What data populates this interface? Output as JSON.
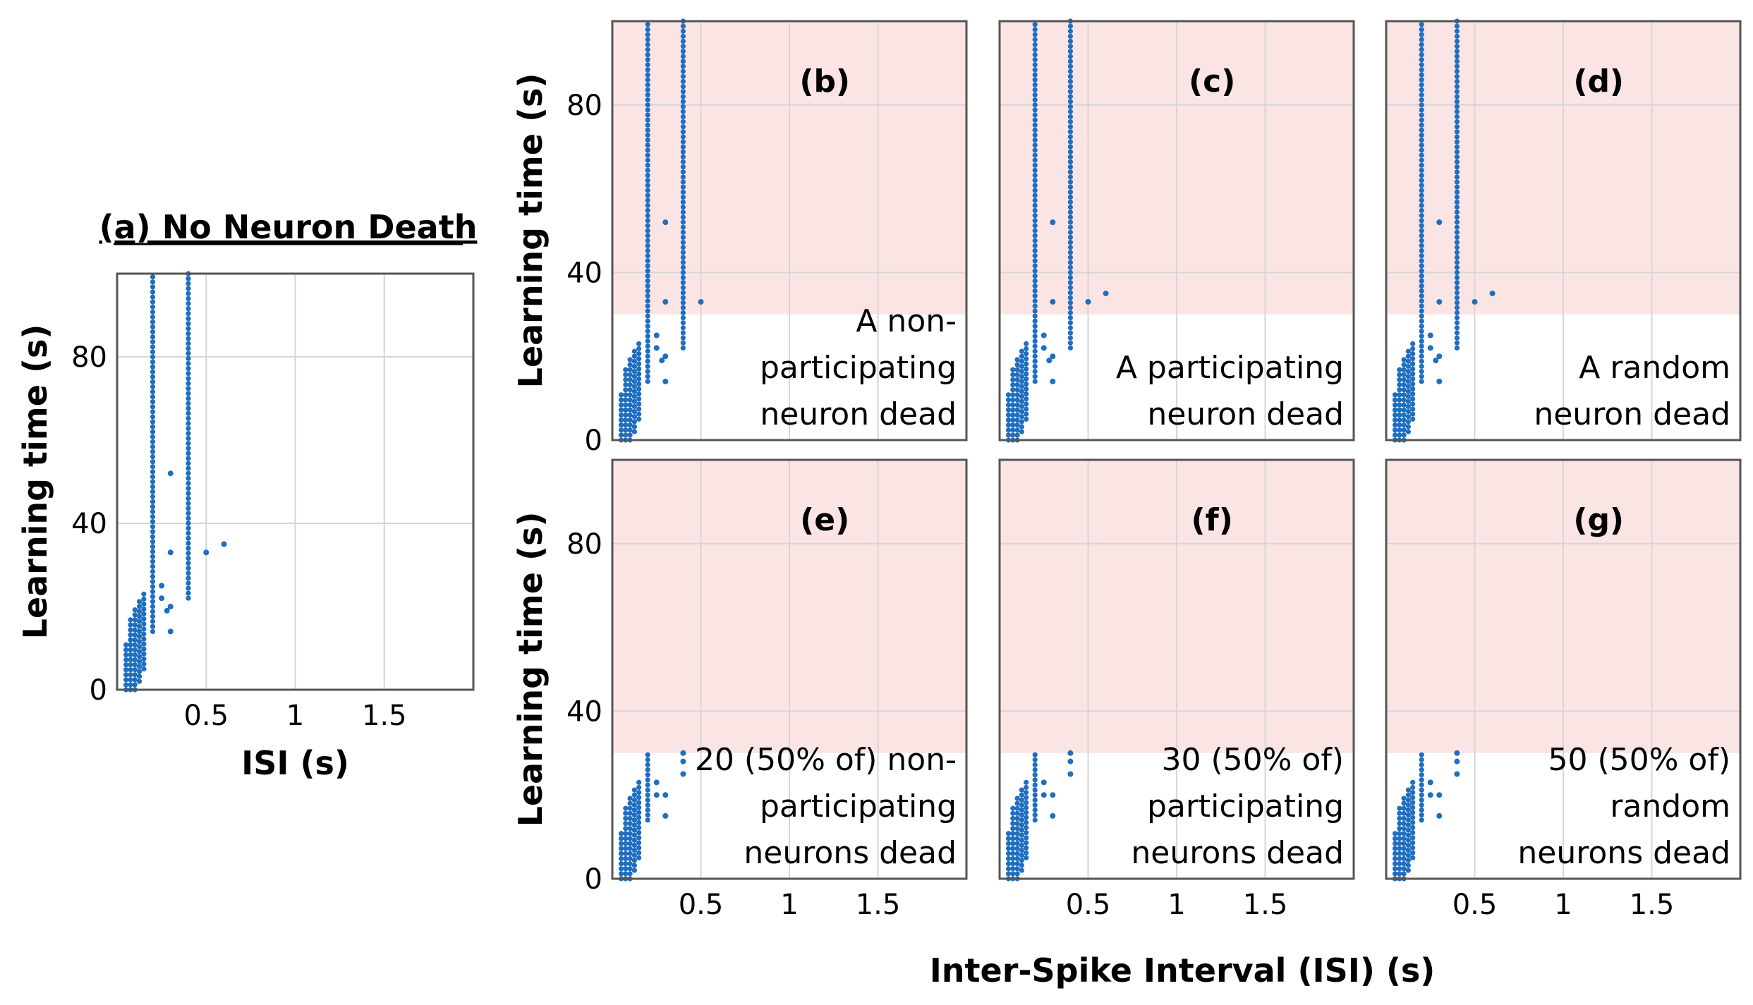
{
  "colors": {
    "points": "#1f6ebf",
    "shade": "#fbe4e4",
    "frame": "#555555",
    "grid": "#d6d6d6"
  },
  "figure": {
    "xlabel_main": "Inter-Spike Interval (ISI) (s)"
  },
  "chart_data": [
    {
      "id": "a",
      "type": "scatter",
      "title": "(a) No Neuron Death",
      "xlabel": "ISI (s)",
      "ylabel": "Learning time (s)",
      "xlim": [
        0,
        2
      ],
      "ylim": [
        0,
        100
      ],
      "xticks": [
        0.5,
        1,
        1.5
      ],
      "xtick_labels": [
        "0.5",
        "1",
        "1.5"
      ],
      "yticks": [
        0,
        40,
        80
      ],
      "ytick_labels": [
        "0",
        "40",
        "80"
      ],
      "grid": true,
      "shaded_above": null,
      "annotation": [],
      "columns": [
        {
          "x": 0.05,
          "ymin": 0,
          "ymax": 11
        },
        {
          "x": 0.075,
          "ymin": 0,
          "ymax": 17
        },
        {
          "x": 0.1,
          "ymin": 0,
          "ymax": 20
        },
        {
          "x": 0.125,
          "ymin": 2,
          "ymax": 22
        },
        {
          "x": 0.15,
          "ymin": 5,
          "ymax": 23
        },
        {
          "x": 0.2,
          "ymin": 14,
          "ymax": 100
        },
        {
          "x": 0.4,
          "ymin": 22,
          "ymax": 100
        }
      ],
      "points": [
        [
          0.25,
          22
        ],
        [
          0.25,
          25
        ],
        [
          0.28,
          19
        ],
        [
          0.3,
          14
        ],
        [
          0.3,
          20
        ],
        [
          0.3,
          33
        ],
        [
          0.3,
          52
        ],
        [
          0.5,
          33
        ],
        [
          0.6,
          35
        ]
      ]
    },
    {
      "id": "b",
      "type": "scatter",
      "title": "(b)",
      "xlabel": "",
      "ylabel": "Learning time (s)",
      "xlim": [
        0,
        2
      ],
      "ylim": [
        0,
        100
      ],
      "xticks": [
        0.5,
        1,
        1.5
      ],
      "xtick_labels": [],
      "yticks": [
        0,
        40,
        80
      ],
      "ytick_labels": [
        "0",
        "40",
        "80"
      ],
      "grid": true,
      "shaded_above": 30,
      "annotation": [
        "A non-",
        "participating",
        "neuron dead"
      ],
      "columns": [
        {
          "x": 0.05,
          "ymin": 0,
          "ymax": 11
        },
        {
          "x": 0.075,
          "ymin": 0,
          "ymax": 17
        },
        {
          "x": 0.1,
          "ymin": 0,
          "ymax": 20
        },
        {
          "x": 0.125,
          "ymin": 2,
          "ymax": 22
        },
        {
          "x": 0.15,
          "ymin": 5,
          "ymax": 23
        },
        {
          "x": 0.2,
          "ymin": 14,
          "ymax": 100
        },
        {
          "x": 0.4,
          "ymin": 22,
          "ymax": 100
        }
      ],
      "points": [
        [
          0.25,
          22
        ],
        [
          0.25,
          25
        ],
        [
          0.28,
          19
        ],
        [
          0.3,
          14
        ],
        [
          0.3,
          20
        ],
        [
          0.3,
          33
        ],
        [
          0.3,
          52
        ],
        [
          0.5,
          33
        ]
      ]
    },
    {
      "id": "c",
      "type": "scatter",
      "title": "(c)",
      "xlabel": "",
      "ylabel": "",
      "xlim": [
        0,
        2
      ],
      "ylim": [
        0,
        100
      ],
      "xticks": [
        0.5,
        1,
        1.5
      ],
      "xtick_labels": [],
      "yticks": [
        0,
        40,
        80
      ],
      "ytick_labels": [],
      "grid": true,
      "shaded_above": 30,
      "annotation": [
        "A participating",
        "neuron dead"
      ],
      "columns": [
        {
          "x": 0.05,
          "ymin": 0,
          "ymax": 11
        },
        {
          "x": 0.075,
          "ymin": 0,
          "ymax": 17
        },
        {
          "x": 0.1,
          "ymin": 0,
          "ymax": 20
        },
        {
          "x": 0.125,
          "ymin": 2,
          "ymax": 22
        },
        {
          "x": 0.15,
          "ymin": 5,
          "ymax": 23
        },
        {
          "x": 0.2,
          "ymin": 14,
          "ymax": 100
        },
        {
          "x": 0.4,
          "ymin": 22,
          "ymax": 100
        }
      ],
      "points": [
        [
          0.25,
          22
        ],
        [
          0.25,
          25
        ],
        [
          0.28,
          19
        ],
        [
          0.3,
          14
        ],
        [
          0.3,
          20
        ],
        [
          0.3,
          33
        ],
        [
          0.3,
          52
        ],
        [
          0.5,
          33
        ],
        [
          0.6,
          35
        ]
      ]
    },
    {
      "id": "d",
      "type": "scatter",
      "title": "(d)",
      "xlabel": "",
      "ylabel": "",
      "xlim": [
        0,
        2
      ],
      "ylim": [
        0,
        100
      ],
      "xticks": [
        0.5,
        1,
        1.5
      ],
      "xtick_labels": [],
      "yticks": [
        0,
        40,
        80
      ],
      "ytick_labels": [],
      "grid": true,
      "shaded_above": 30,
      "annotation": [
        "A random",
        "neuron dead"
      ],
      "columns": [
        {
          "x": 0.05,
          "ymin": 0,
          "ymax": 11
        },
        {
          "x": 0.075,
          "ymin": 0,
          "ymax": 17
        },
        {
          "x": 0.1,
          "ymin": 0,
          "ymax": 20
        },
        {
          "x": 0.125,
          "ymin": 2,
          "ymax": 22
        },
        {
          "x": 0.15,
          "ymin": 5,
          "ymax": 23
        },
        {
          "x": 0.2,
          "ymin": 14,
          "ymax": 100
        },
        {
          "x": 0.4,
          "ymin": 22,
          "ymax": 100
        }
      ],
      "points": [
        [
          0.25,
          22
        ],
        [
          0.25,
          25
        ],
        [
          0.28,
          19
        ],
        [
          0.3,
          14
        ],
        [
          0.3,
          20
        ],
        [
          0.3,
          33
        ],
        [
          0.3,
          52
        ],
        [
          0.5,
          33
        ],
        [
          0.6,
          35
        ]
      ]
    },
    {
      "id": "e",
      "type": "scatter",
      "title": "(e)",
      "xlabel": "",
      "ylabel": "Learning time (s)",
      "xlim": [
        0,
        2
      ],
      "ylim": [
        0,
        100
      ],
      "xticks": [
        0.5,
        1,
        1.5
      ],
      "xtick_labels": [
        "0.5",
        "1",
        "1.5"
      ],
      "yticks": [
        0,
        40,
        80
      ],
      "ytick_labels": [
        "0",
        "40",
        "80"
      ],
      "grid": true,
      "shaded_above": 30,
      "annotation": [
        "20 (50% of) non-",
        "participating",
        "neurons dead"
      ],
      "columns": [
        {
          "x": 0.05,
          "ymin": 0,
          "ymax": 11
        },
        {
          "x": 0.075,
          "ymin": 0,
          "ymax": 17
        },
        {
          "x": 0.1,
          "ymin": 0,
          "ymax": 20
        },
        {
          "x": 0.125,
          "ymin": 2,
          "ymax": 22
        },
        {
          "x": 0.15,
          "ymin": 5,
          "ymax": 24
        },
        {
          "x": 0.2,
          "ymin": 14,
          "ymax": 30
        }
      ],
      "points": [
        [
          0.25,
          20
        ],
        [
          0.25,
          23
        ],
        [
          0.3,
          15
        ],
        [
          0.3,
          20
        ],
        [
          0.4,
          25
        ],
        [
          0.4,
          28
        ],
        [
          0.4,
          30
        ]
      ]
    },
    {
      "id": "f",
      "type": "scatter",
      "title": "(f)",
      "xlabel": "",
      "ylabel": "",
      "xlim": [
        0,
        2
      ],
      "ylim": [
        0,
        100
      ],
      "xticks": [
        0.5,
        1,
        1.5
      ],
      "xtick_labels": [
        "0.5",
        "1",
        "1.5"
      ],
      "yticks": [
        0,
        40,
        80
      ],
      "ytick_labels": [],
      "grid": true,
      "shaded_above": 30,
      "annotation": [
        "30 (50% of)",
        "participating",
        "neurons dead"
      ],
      "columns": [
        {
          "x": 0.05,
          "ymin": 0,
          "ymax": 11
        },
        {
          "x": 0.075,
          "ymin": 0,
          "ymax": 17
        },
        {
          "x": 0.1,
          "ymin": 0,
          "ymax": 20
        },
        {
          "x": 0.125,
          "ymin": 2,
          "ymax": 22
        },
        {
          "x": 0.15,
          "ymin": 5,
          "ymax": 24
        },
        {
          "x": 0.2,
          "ymin": 14,
          "ymax": 30
        }
      ],
      "points": [
        [
          0.25,
          20
        ],
        [
          0.25,
          23
        ],
        [
          0.3,
          15
        ],
        [
          0.3,
          20
        ],
        [
          0.4,
          25
        ],
        [
          0.4,
          28
        ],
        [
          0.4,
          30
        ]
      ]
    },
    {
      "id": "g",
      "type": "scatter",
      "title": "(g)",
      "xlabel": "",
      "ylabel": "",
      "xlim": [
        0,
        2
      ],
      "ylim": [
        0,
        100
      ],
      "xticks": [
        0.5,
        1,
        1.5
      ],
      "xtick_labels": [
        "0.5",
        "1",
        "1.5"
      ],
      "yticks": [
        0,
        40,
        80
      ],
      "ytick_labels": [],
      "grid": true,
      "shaded_above": 30,
      "annotation": [
        "50 (50% of)",
        "random",
        "neurons dead"
      ],
      "columns": [
        {
          "x": 0.05,
          "ymin": 0,
          "ymax": 11
        },
        {
          "x": 0.075,
          "ymin": 0,
          "ymax": 17
        },
        {
          "x": 0.1,
          "ymin": 0,
          "ymax": 20
        },
        {
          "x": 0.125,
          "ymin": 2,
          "ymax": 22
        },
        {
          "x": 0.15,
          "ymin": 5,
          "ymax": 24
        },
        {
          "x": 0.2,
          "ymin": 14,
          "ymax": 30
        }
      ],
      "points": [
        [
          0.25,
          20
        ],
        [
          0.25,
          23
        ],
        [
          0.3,
          15
        ],
        [
          0.3,
          20
        ],
        [
          0.4,
          25
        ],
        [
          0.4,
          28
        ],
        [
          0.4,
          30
        ]
      ]
    }
  ]
}
